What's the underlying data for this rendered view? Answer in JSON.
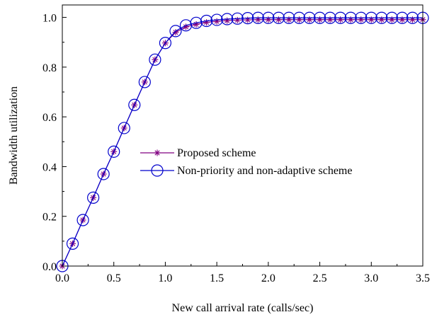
{
  "chart_data": {
    "type": "line",
    "title": "",
    "xlabel": "New call arrival rate (calls/sec)",
    "ylabel": "Bandwidth utilization",
    "xlim": [
      0,
      3.5
    ],
    "ylim": [
      0,
      1.05
    ],
    "xticks": [
      "0.0",
      "0.5",
      "1.0",
      "1.5",
      "2.0",
      "2.5",
      "3.0",
      "3.5"
    ],
    "yticks": [
      "0.0",
      "0.2",
      "0.4",
      "0.6",
      "0.8",
      "1.0"
    ],
    "grid": false,
    "legend_position": "center-right",
    "series": [
      {
        "name": "Proposed scheme",
        "color": "#800080",
        "marker": "asterisk",
        "x": [
          0.0,
          0.1,
          0.2,
          0.3,
          0.4,
          0.5,
          0.6,
          0.7,
          0.8,
          0.9,
          1.0,
          1.1,
          1.2,
          1.3,
          1.4,
          1.5,
          1.6,
          1.7,
          1.8,
          1.9,
          2.0,
          2.1,
          2.2,
          2.3,
          2.4,
          2.5,
          2.6,
          2.7,
          2.8,
          2.9,
          3.0,
          3.1,
          3.2,
          3.3,
          3.4,
          3.5
        ],
        "y": [
          0.0,
          0.09,
          0.185,
          0.275,
          0.37,
          0.46,
          0.555,
          0.648,
          0.74,
          0.83,
          0.897,
          0.94,
          0.962,
          0.972,
          0.98,
          0.984,
          0.987,
          0.989,
          0.99,
          0.991,
          0.991,
          0.991,
          0.991,
          0.991,
          0.991,
          0.991,
          0.991,
          0.991,
          0.991,
          0.991,
          0.991,
          0.991,
          0.991,
          0.991,
          0.991,
          0.991
        ]
      },
      {
        "name": "Non-priority and non-adaptive scheme",
        "color": "#0000cc",
        "marker": "circle",
        "x": [
          0.0,
          0.1,
          0.2,
          0.3,
          0.4,
          0.5,
          0.6,
          0.7,
          0.8,
          0.9,
          1.0,
          1.1,
          1.2,
          1.3,
          1.4,
          1.5,
          1.6,
          1.7,
          1.8,
          1.9,
          2.0,
          2.1,
          2.2,
          2.3,
          2.4,
          2.5,
          2.6,
          2.7,
          2.8,
          2.9,
          3.0,
          3.1,
          3.2,
          3.3,
          3.4,
          3.5
        ],
        "y": [
          0.0,
          0.09,
          0.185,
          0.275,
          0.37,
          0.46,
          0.555,
          0.648,
          0.74,
          0.83,
          0.897,
          0.945,
          0.968,
          0.978,
          0.986,
          0.99,
          0.993,
          0.995,
          0.997,
          0.998,
          0.998,
          0.998,
          0.998,
          0.998,
          0.998,
          0.998,
          0.998,
          0.998,
          0.998,
          0.998,
          0.998,
          0.998,
          0.998,
          0.998,
          0.998,
          0.998
        ]
      }
    ]
  }
}
